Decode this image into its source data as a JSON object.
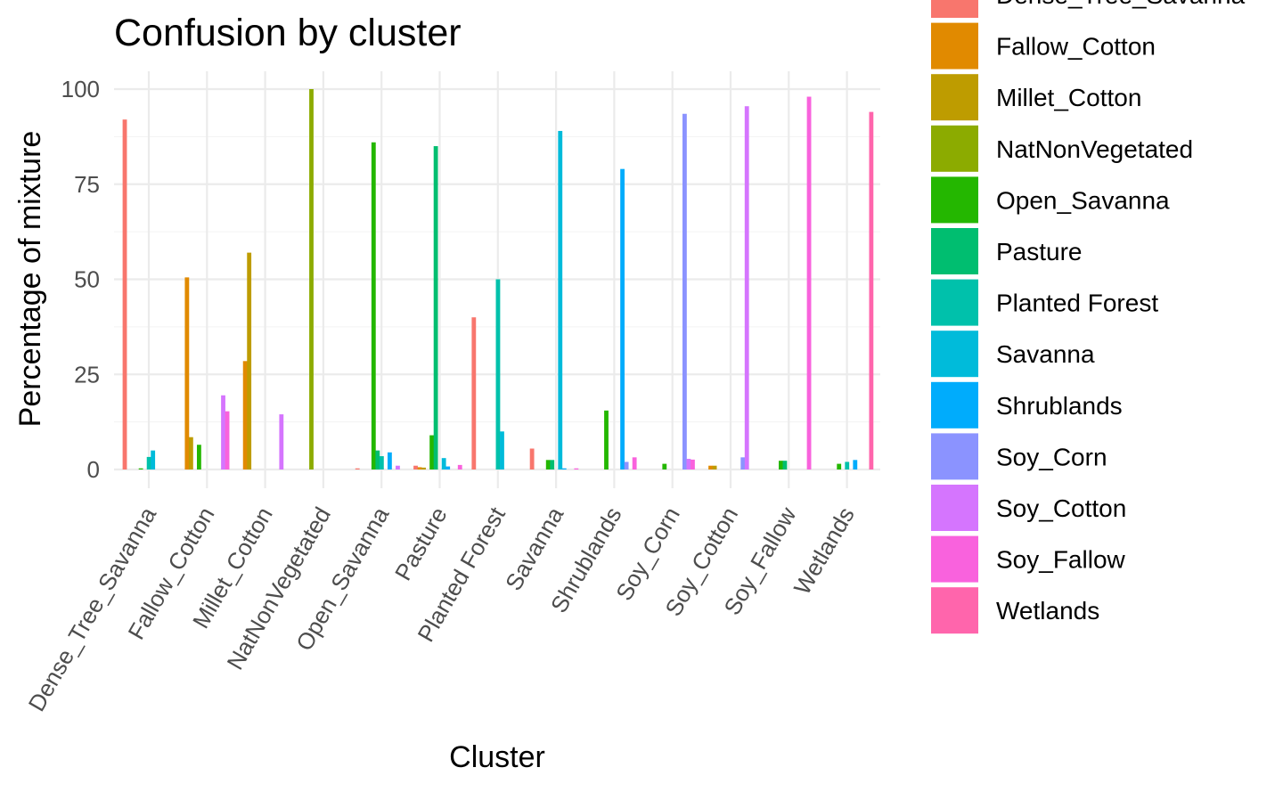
{
  "chart_data": {
    "type": "bar",
    "title": "Confusion by cluster",
    "xlabel": "Cluster",
    "ylabel": "Percentage of mixture",
    "ylim": [
      0,
      100
    ],
    "yticks": [
      0,
      25,
      50,
      75,
      100
    ],
    "grid": true,
    "legend_position": "right",
    "categories": [
      "Dense_Tree_Savanna",
      "Fallow_Cotton",
      "Millet_Cotton",
      "NatNonVegetated",
      "Open_Savanna",
      "Pasture",
      "Planted Forest",
      "Savanna",
      "Shrublands",
      "Soy_Corn",
      "Soy_Cotton",
      "Soy_Fallow",
      "Wetlands"
    ],
    "series": [
      {
        "name": "Dense_Tree_Savanna",
        "color": "#F8766D",
        "values": [
          92,
          0,
          0,
          0,
          0.3,
          1,
          40,
          5.5,
          0,
          0,
          0,
          0,
          0
        ]
      },
      {
        "name": "Fallow_Cotton",
        "color": "#E18A00",
        "values": [
          0,
          50.5,
          28.5,
          0,
          0,
          0.6,
          0,
          0,
          0,
          0,
          1,
          0,
          0
        ]
      },
      {
        "name": "Millet_Cotton",
        "color": "#BE9C00",
        "values": [
          0,
          8.5,
          57,
          0,
          0,
          0.5,
          0,
          0,
          0,
          0,
          1,
          0,
          0
        ]
      },
      {
        "name": "NatNonVegetated",
        "color": "#8CAB00",
        "values": [
          0,
          0,
          0,
          100,
          0,
          0,
          0,
          0,
          0,
          0,
          0,
          0,
          0
        ]
      },
      {
        "name": "Open_Savanna",
        "color": "#24B700",
        "values": [
          0.3,
          6.5,
          0,
          0,
          86,
          9,
          0,
          2.5,
          15.5,
          1.5,
          0,
          2.3,
          1.5
        ]
      },
      {
        "name": "Pasture",
        "color": "#00BE70",
        "values": [
          0,
          0,
          0,
          0,
          5,
          85,
          0,
          2.5,
          0,
          0,
          0,
          2.3,
          0
        ]
      },
      {
        "name": "Planted Forest",
        "color": "#00C1AB",
        "values": [
          3.3,
          0,
          0,
          0,
          3.5,
          0,
          50,
          0,
          0,
          0,
          0,
          0,
          2
        ]
      },
      {
        "name": "Savanna",
        "color": "#00BBDA",
        "values": [
          5,
          0,
          0,
          0,
          0,
          3,
          10,
          89,
          0,
          0,
          0,
          0,
          0
        ]
      },
      {
        "name": "Shrublands",
        "color": "#00ACFC",
        "values": [
          0,
          0,
          0,
          0,
          4.5,
          0.8,
          0,
          0.3,
          79,
          0,
          0,
          0,
          2.5
        ]
      },
      {
        "name": "Soy_Corn",
        "color": "#8B93FF",
        "values": [
          0,
          0,
          0,
          0,
          0,
          0,
          0,
          0,
          2,
          93.5,
          3.2,
          0,
          0
        ]
      },
      {
        "name": "Soy_Cotton",
        "color": "#D575FE",
        "values": [
          0,
          19.5,
          14.5,
          0,
          1,
          0,
          0,
          0,
          0,
          2.8,
          95.5,
          0,
          0
        ]
      },
      {
        "name": "Soy_Fallow",
        "color": "#F962DD",
        "values": [
          0,
          15.3,
          0,
          0,
          0,
          1.2,
          0,
          0.3,
          3.2,
          2.6,
          0,
          98,
          0
        ]
      },
      {
        "name": "Wetlands",
        "color": "#FF65AC",
        "values": [
          0,
          0,
          0,
          0,
          0,
          0,
          0,
          0,
          0,
          0,
          0,
          0,
          94
        ]
      }
    ]
  }
}
